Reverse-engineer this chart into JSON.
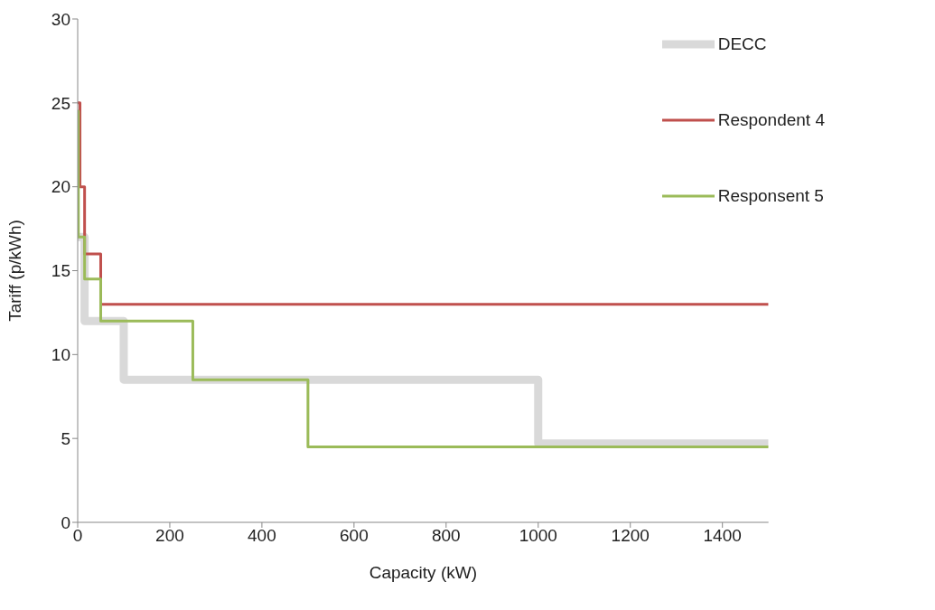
{
  "chart_data": {
    "type": "step",
    "xlabel": "Capacity (kW)",
    "ylabel": "Tariff (p/kWh)",
    "xlim": [
      0,
      1500
    ],
    "xticks": [
      0,
      200,
      400,
      600,
      800,
      1000,
      1200,
      1400
    ],
    "ylim": [
      0,
      30
    ],
    "yticks": [
      0,
      5,
      10,
      15,
      20,
      25,
      30
    ],
    "grid": false,
    "legend": "top right",
    "marker": "none",
    "line_style": "solid",
    "series": [
      {
        "name": "DECC",
        "color": "#d9d9d9",
        "x": [
          0,
          15,
          100,
          1000,
          1500
        ],
        "values": [
          17,
          12,
          8.5,
          4.7,
          4.7
        ]
      },
      {
        "name": "Respondent 4",
        "color": "#c0504d",
        "x": [
          0,
          5,
          15,
          50,
          1500
        ],
        "values": [
          25,
          20,
          16,
          13,
          13
        ]
      },
      {
        "name": "Responsent 5",
        "color": "#9bbb59",
        "x": [
          0,
          1.5,
          15,
          50,
          250,
          500,
          1500
        ],
        "values": [
          24.5,
          17,
          14.5,
          12,
          8.5,
          4.5,
          4.5
        ]
      }
    ]
  }
}
